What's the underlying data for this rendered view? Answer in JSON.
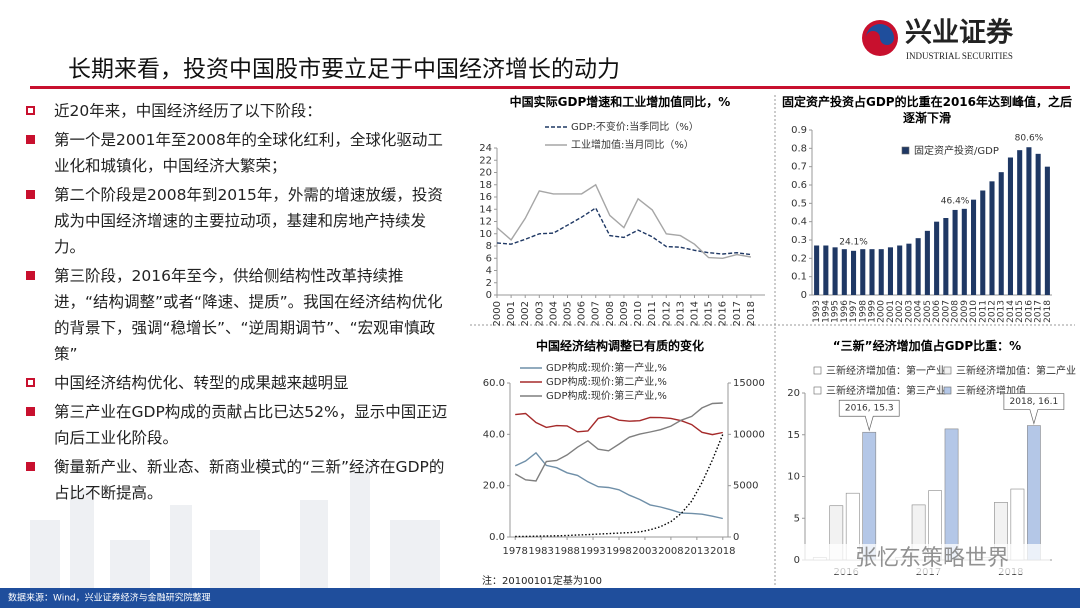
{
  "header": {
    "logo": "兴业证券",
    "logo_en": "INDUSTRIAL SECURITIES",
    "title": "长期来看，投资中国股市要立足于中国经济增长的动力"
  },
  "bullets": [
    {
      "marker": "hollow",
      "text": "近20年来，中国经济经历了以下阶段："
    },
    {
      "marker": "filled",
      "text": "第一个是2001年至2008年的全球化红利，全球化驱动工业化和城镇化，中国经济大繁荣；"
    },
    {
      "marker": "filled",
      "text": "第二个阶段是2008年到2015年，外需的增速放缓，投资成为中国经济增速的主要拉动项，基建和房地产持续发力。"
    },
    {
      "marker": "filled",
      "text": "第三阶段，2016年至今，供给侧结构性改革持续推进，“结构调整”或者“降速、提质”。我国在经济结构优化的背景下，强调“稳增长”、“逆周期调节”、“宏观审慎政策”"
    },
    {
      "marker": "hollow",
      "text": "中国经济结构优化、转型的成果越来越明显"
    },
    {
      "marker": "filled",
      "text": "第三产业在GDP构成的贡献占比已达52%，显示中国正迈向后工业化阶段。"
    },
    {
      "marker": "filled",
      "text": "衡量新产业、新业态、新商业模式的“三新”经济在GDP的占比不断提高。"
    }
  ],
  "footer": "数据来源：Wind，兴业证券经济与金融研究院整理",
  "watermark": "张忆东策略世界",
  "chart_data": [
    {
      "type": "line",
      "title": "中国实际GDP增速和工业增加值同比，%",
      "x": [
        2000,
        2001,
        2002,
        2003,
        2004,
        2005,
        2006,
        2007,
        2008,
        2009,
        2010,
        2011,
        2012,
        2013,
        2014,
        2015,
        2016,
        2017,
        2018
      ],
      "xlim": [
        2000,
        2019
      ],
      "xticks": [
        2000,
        2001,
        2002,
        2003,
        2004,
        2005,
        2006,
        2007,
        2008,
        2009,
        2010,
        2011,
        2012,
        2013,
        2014,
        2015,
        2016,
        2017,
        2018
      ],
      "ylim": [
        0,
        24
      ],
      "yticks": [
        0,
        2,
        4,
        6,
        8,
        10,
        12,
        14,
        16,
        18,
        20,
        22,
        24
      ],
      "grid": false,
      "series": [
        {
          "name": "GDP:不变价:当季同比（%）",
          "color": "#1f3864",
          "style": "dashed",
          "values": [
            8.5,
            8.3,
            9.1,
            10.0,
            10.1,
            11.4,
            12.7,
            14.2,
            9.7,
            9.4,
            10.6,
            9.5,
            7.9,
            7.8,
            7.3,
            6.9,
            6.7,
            6.9,
            6.6
          ]
        },
        {
          "name": "工业增加值:当月同比（%）",
          "color": "#a6a6a6",
          "style": "solid",
          "values": [
            11,
            9,
            12.5,
            17,
            16.5,
            16.5,
            16.5,
            18,
            13,
            11,
            15.7,
            13.9,
            10,
            9.7,
            8.3,
            6.1,
            6,
            6.6,
            6.2
          ]
        }
      ]
    },
    {
      "type": "bar",
      "title": "固定资产投资占GDP的比重在2016年达到峰值，之后逐渐下滑",
      "categories": [
        "1993",
        "1994",
        "1995",
        "1996",
        "1997",
        "1998",
        "1999",
        "2000",
        "2001",
        "2002",
        "2003",
        "2004",
        "2005",
        "2006",
        "2007",
        "2008",
        "2009",
        "2010",
        "2011",
        "2012",
        "2013",
        "2014",
        "2015",
        "2016",
        "2017",
        "2018"
      ],
      "series": [
        {
          "name": "固定资产投资/GDP",
          "color": "#1f3864",
          "values": [
            0.27,
            0.27,
            0.26,
            0.25,
            0.241,
            0.25,
            0.25,
            0.25,
            0.26,
            0.27,
            0.28,
            0.31,
            0.35,
            0.4,
            0.42,
            0.464,
            0.47,
            0.52,
            0.57,
            0.62,
            0.67,
            0.75,
            0.79,
            0.806,
            0.77,
            0.7
          ],
          "value_labels": [
            null,
            null,
            null,
            null,
            "24.1%",
            null,
            null,
            null,
            null,
            null,
            null,
            null,
            null,
            null,
            null,
            "46.4%",
            null,
            null,
            null,
            null,
            null,
            null,
            null,
            "80.6%",
            null,
            null
          ]
        }
      ],
      "ylim": [
        0,
        0.9
      ],
      "yticks": [
        0,
        0.1,
        0.2,
        0.3,
        0.4,
        0.5,
        0.6,
        0.7,
        0.8,
        0.9
      ],
      "grid": false
    },
    {
      "type": "line",
      "title": "中国经济结构调整已有质的变化",
      "note": "注：20100101定基为100",
      "x": [
        1978,
        1980,
        1982,
        1984,
        1986,
        1988,
        1990,
        1992,
        1994,
        1996,
        1998,
        2000,
        2002,
        2004,
        2006,
        2008,
        2010,
        2012,
        2014,
        2016,
        2018
      ],
      "xlim": [
        1977,
        2019
      ],
      "xticks": [
        1978,
        1983,
        1988,
        1993,
        1998,
        2003,
        2008,
        2013,
        2018
      ],
      "ylim": [
        0,
        60
      ],
      "yticks": [
        {
          "value": 0,
          "label": "0.0"
        },
        {
          "value": 20,
          "label": "20.0"
        },
        {
          "value": 40,
          "label": "40.0"
        },
        {
          "value": 60,
          "label": "60.0"
        }
      ],
      "y2lim": [
        0,
        15000
      ],
      "y2ticks": [
        0,
        5000,
        10000,
        15000
      ],
      "grid": false,
      "series": [
        {
          "name": "GDP构成:现价:第一产业,%",
          "color": "#6f8fa8",
          "style": "solid",
          "values": [
            27.7,
            29.6,
            32.8,
            27.9,
            27.0,
            25.0,
            24.0,
            21.5,
            19.6,
            19.3,
            18.4,
            16.3,
            14.6,
            12.5,
            11.7,
            10.6,
            9.3,
            9.2,
            8.9,
            8.1,
            7.2
          ]
        },
        {
          "name": "GDP构成:现价:第二产业,%",
          "color": "#a52a2a",
          "style": "solid",
          "values": [
            47.7,
            48.1,
            44.6,
            42.7,
            43.4,
            43.3,
            41.0,
            41.3,
            46.2,
            47.1,
            45.5,
            45.1,
            45.3,
            46.6,
            46.5,
            46.2,
            45.3,
            43.8,
            40.8,
            39.9,
            40.7
          ]
        },
        {
          "name": "GDP构成:现价:第三产业,%",
          "color": "#7f7f7f",
          "style": "solid",
          "values": [
            24.6,
            22.3,
            21.8,
            29.4,
            29.8,
            32.0,
            35.0,
            37.5,
            34.2,
            33.6,
            36.2,
            38.9,
            40.1,
            40.9,
            41.8,
            43.2,
            45.5,
            47.0,
            50.3,
            52.0,
            52.2
          ]
        },
        {
          "color": "#000000",
          "style": "dotted",
          "axis": "y2",
          "values": [
            50,
            60,
            80,
            100,
            120,
            150,
            190,
            230,
            280,
            330,
            380,
            430,
            500,
            700,
            1000,
            1500,
            2300,
            3500,
            5300,
            7500,
            10000
          ]
        }
      ]
    },
    {
      "type": "bar",
      "title": "“三新”经济增加值占GDP比重：%",
      "categories": [
        "2016",
        "2017",
        "2018"
      ],
      "ylim": [
        0,
        20
      ],
      "yticks": [
        0,
        5,
        10,
        15,
        20
      ],
      "grid": false,
      "series": [
        {
          "name": "三新经济增加值：第一产业",
          "color": "#ffffff",
          "values": [
            0.3,
            0.3,
            0.3
          ]
        },
        {
          "name": "三新经济增加值：第二产业",
          "color": "#f2f2f2",
          "values": [
            6.5,
            6.6,
            6.9
          ]
        },
        {
          "name": "三新经济增加值：第三产业",
          "color": "#ffffff",
          "values": [
            8.0,
            8.3,
            8.5
          ]
        },
        {
          "name": "三新经济增加值",
          "color": "#b4c7e7",
          "values": [
            15.3,
            15.7,
            16.1
          ],
          "value_labels": [
            "2016, 15.3",
            null,
            "2018, 16.1"
          ]
        }
      ]
    }
  ]
}
